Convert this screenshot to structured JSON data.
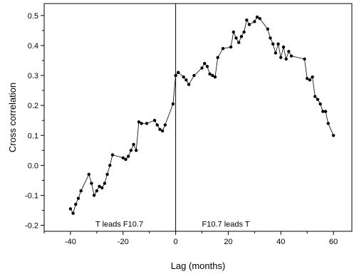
{
  "chart_data": {
    "type": "line",
    "title": "",
    "xlabel": "Lag (months)",
    "ylabel": "Cross correlation",
    "xlim": [
      -50,
      67
    ],
    "ylim": [
      -0.22,
      0.54
    ],
    "xticks": [
      -40,
      -20,
      0,
      20,
      40,
      60
    ],
    "yticks": [
      -0.2,
      -0.1,
      0.0,
      0.1,
      0.2,
      0.3,
      0.4,
      0.5
    ],
    "ytick_labels": [
      "-0.2",
      "-0.1",
      "0.0",
      "0.1",
      "0.2",
      "0.3",
      "0.4",
      "0.5"
    ],
    "xtick_labels": [
      "-40",
      "-20",
      "0",
      "20",
      "40",
      "60"
    ],
    "vertical_line_x": 0,
    "grid": false,
    "annotations": [
      {
        "text": "T leads F10.7",
        "x": -30.5,
        "y": -0.205
      },
      {
        "text": "F10.7 leads T",
        "x": 10,
        "y": -0.205
      }
    ],
    "series": [
      {
        "x": [
          -40,
          -39,
          -38,
          -37,
          -36,
          -33,
          -32,
          -31,
          -30,
          -29,
          -28,
          -27,
          -26,
          -25,
          -24,
          -20,
          -19,
          -18,
          -17,
          -16,
          -15,
          -14,
          -13,
          -11,
          -8,
          -7,
          -6,
          -5,
          -4,
          -1,
          0,
          1,
          3,
          4,
          5,
          7,
          10,
          11,
          12,
          13,
          14,
          15,
          16,
          18,
          21,
          22,
          23,
          24,
          25,
          26,
          27,
          28,
          30,
          31,
          32,
          35,
          36,
          37,
          38,
          39,
          40,
          41,
          42,
          43,
          44,
          49,
          50,
          51,
          52,
          53,
          54,
          55,
          56,
          57,
          58,
          60
        ],
        "y": [
          -0.145,
          -0.16,
          -0.13,
          -0.11,
          -0.085,
          -0.03,
          -0.06,
          -0.1,
          -0.085,
          -0.07,
          -0.075,
          -0.06,
          -0.03,
          0.0,
          0.035,
          0.025,
          0.02,
          0.03,
          0.05,
          0.07,
          0.05,
          0.145,
          0.14,
          0.14,
          0.15,
          0.135,
          0.12,
          0.115,
          0.135,
          0.205,
          0.3,
          0.31,
          0.295,
          0.285,
          0.27,
          0.3,
          0.325,
          0.34,
          0.33,
          0.305,
          0.3,
          0.295,
          0.36,
          0.39,
          0.395,
          0.445,
          0.425,
          0.41,
          0.43,
          0.445,
          0.485,
          0.47,
          0.48,
          0.495,
          0.49,
          0.455,
          0.425,
          0.405,
          0.375,
          0.405,
          0.36,
          0.395,
          0.355,
          0.38,
          0.365,
          0.355,
          0.29,
          0.285,
          0.295,
          0.23,
          0.22,
          0.205,
          0.18,
          0.18,
          0.14,
          0.1
        ]
      }
    ]
  }
}
